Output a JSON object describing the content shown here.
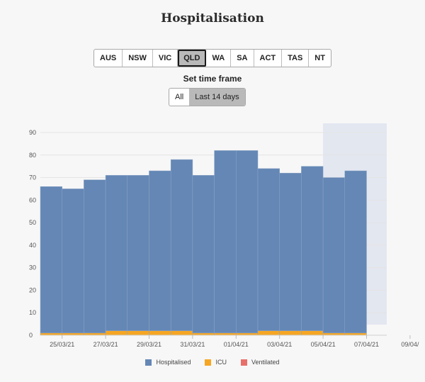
{
  "title": "Hospitalisation",
  "regions": [
    "AUS",
    "NSW",
    "VIC",
    "QLD",
    "WA",
    "SA",
    "ACT",
    "TAS",
    "NT"
  ],
  "active_region": "QLD",
  "timeframe": {
    "label": "Set time frame",
    "options": [
      "All",
      "Last 14 days"
    ],
    "active": "Last 14 days"
  },
  "colors": {
    "hospitalised": "#6487b5",
    "icu": "#f5a623",
    "ventilated": "#e8706a",
    "projection_shade": "#e3e7f0"
  },
  "chart_data": {
    "type": "bar",
    "stacked": true,
    "dates": [
      "24/03/21",
      "25/03/21",
      "26/03/21",
      "27/03/21",
      "28/03/21",
      "29/03/21",
      "30/03/21",
      "31/03/21",
      "01/04/21",
      "02/04/21",
      "03/04/21",
      "04/04/21",
      "05/04/21",
      "06/04/21",
      "07/04/21"
    ],
    "series": [
      {
        "name": "Hospitalised",
        "values": [
          65,
          64,
          68,
          69,
          69,
          71,
          76,
          70,
          81,
          81,
          72,
          70,
          73,
          69,
          72
        ]
      },
      {
        "name": "ICU",
        "values": [
          1,
          1,
          1,
          2,
          2,
          2,
          2,
          1,
          1,
          1,
          2,
          2,
          2,
          1,
          1
        ]
      },
      {
        "name": "Ventilated",
        "values": [
          0,
          0,
          0,
          0,
          0,
          0,
          0,
          0,
          0,
          0,
          0,
          0,
          0,
          0,
          0
        ]
      }
    ],
    "xtick_labels": [
      "25/03/21",
      "27/03/21",
      "29/03/21",
      "31/03/21",
      "01/04/21",
      "03/04/21",
      "05/04/21",
      "07/04/21",
      "09/04/"
    ],
    "ylim": [
      0,
      90
    ],
    "yticks": [
      0,
      10,
      20,
      30,
      40,
      50,
      60,
      70,
      80,
      90
    ],
    "shaded_range": [
      "06/04/21",
      "09/04/21"
    ],
    "legend": [
      "Hospitalised",
      "ICU",
      "Ventilated"
    ],
    "legend_position": "bottom"
  }
}
